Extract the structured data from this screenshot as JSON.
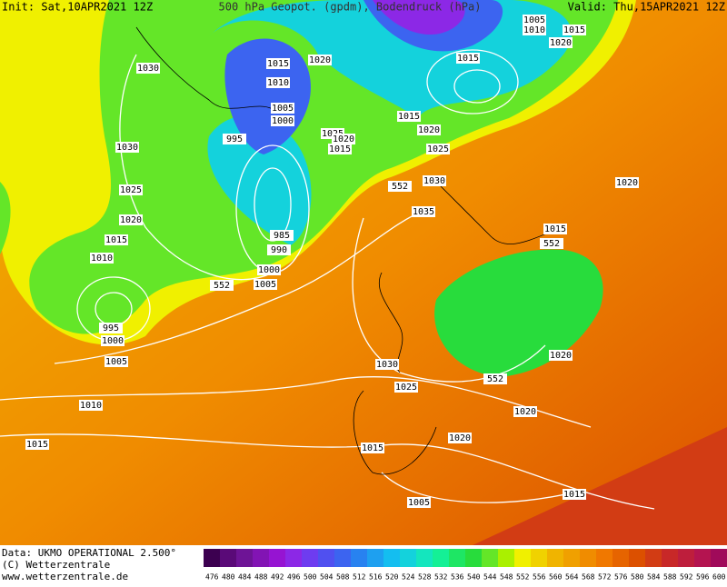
{
  "header": {
    "init": "Init: Sat,10APR2021 12Z",
    "title": "500 hPa Geopot. (gpdm), Bodendruck (hPa)",
    "valid": "Valid: Thu,15APR2021 12Z"
  },
  "isobar_labels": [
    "1005",
    "1010",
    "1015",
    "1020",
    "1015",
    "1020",
    "1015",
    "1030",
    "1010",
    "1005",
    "1000",
    "995",
    "1015",
    "1025",
    "1020",
    "1015",
    "1020",
    "1030",
    "1025",
    "1030",
    "1025",
    "1020",
    "552",
    "1035",
    "1020",
    "1015",
    "985",
    "1015",
    "552",
    "990",
    "1010",
    "1000",
    "1005",
    "552",
    "995",
    "1000",
    "1020",
    "1005",
    "1030",
    "552",
    "1025",
    "1010",
    "1020",
    "1020",
    "1015",
    "1015",
    "1005",
    "1015"
  ],
  "footer": {
    "data": "Data: UKMO OPERATIONAL 2.500°",
    "copyright": "(C) Wetterzentrale",
    "url": "www.wetterzentrale.de"
  },
  "colorbar": {
    "levels": [
      476,
      480,
      484,
      488,
      492,
      496,
      500,
      504,
      508,
      512,
      516,
      520,
      524,
      528,
      532,
      536,
      540,
      544,
      548,
      552,
      556,
      560,
      564,
      568,
      572,
      576,
      580,
      584,
      588,
      592,
      596,
      600
    ],
    "colors": [
      "#3c0050",
      "#5a0a78",
      "#6e1496",
      "#8214b4",
      "#9614d2",
      "#8c28e6",
      "#6e3cf0",
      "#5050f0",
      "#3c64f0",
      "#2882f0",
      "#1ea0f0",
      "#14bef0",
      "#14d2dc",
      "#14e6be",
      "#14f096",
      "#1ee664",
      "#28dc3c",
      "#64e628",
      "#aaf000",
      "#f0f000",
      "#f0d200",
      "#f0b400",
      "#f0a000",
      "#f08c00",
      "#f07800",
      "#e66400",
      "#dc5000",
      "#d23c14",
      "#c82828",
      "#be1e3c",
      "#b41450",
      "#a00a5a"
    ]
  }
}
